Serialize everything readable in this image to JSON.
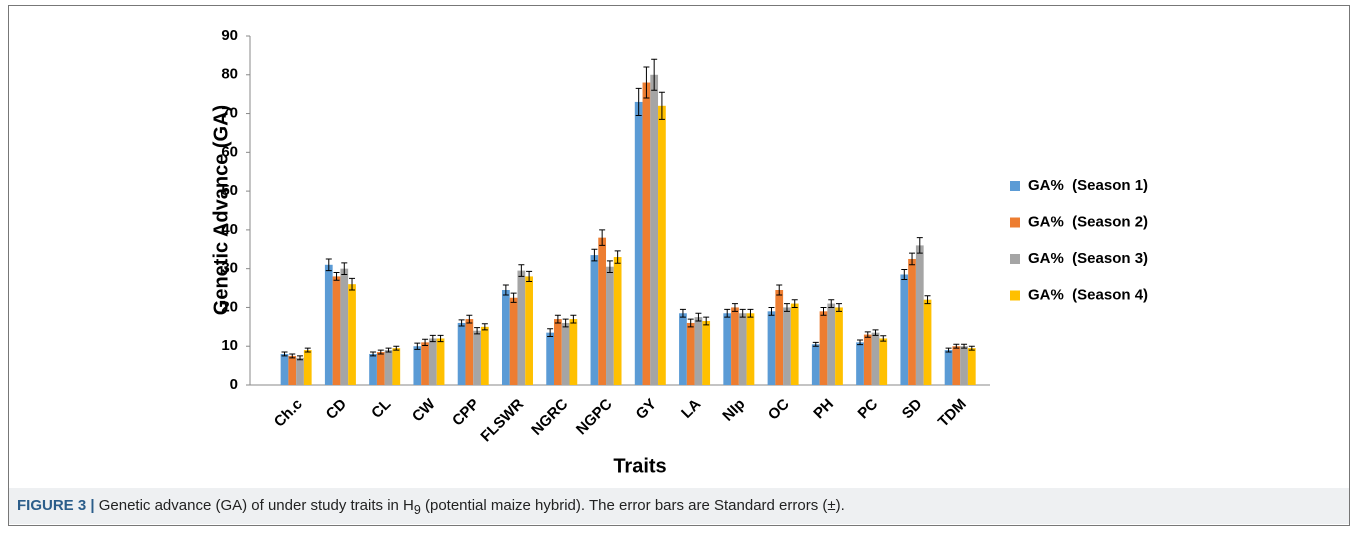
{
  "chart_data": {
    "type": "bar",
    "x_label": "Traits",
    "y_label": "Genetic Advance (GA)",
    "categories": [
      "Ch.c",
      "CD",
      "CL",
      "CW",
      "CPP",
      "FLSWR",
      "NGRC",
      "NGPC",
      "GY",
      "LA",
      "NIp",
      "OC",
      "PH",
      "PC",
      "SD",
      "TDM"
    ],
    "series": [
      {
        "name": "GA%  (Season 1)",
        "color": "#5b9bd5",
        "values": [
          8,
          31,
          8,
          10,
          16,
          24.5,
          13.5,
          33.5,
          73,
          18.5,
          18.5,
          19,
          10.5,
          11,
          28.5,
          9
        ],
        "errors": [
          0.5,
          1.5,
          0.5,
          0.8,
          0.8,
          1.3,
          1,
          1.5,
          3.5,
          1,
          1,
          1,
          0.5,
          0.6,
          1.3,
          0.5
        ]
      },
      {
        "name": "GA%  (Season 2)",
        "color": "#ed7d31",
        "values": [
          7.5,
          28,
          8.5,
          11,
          17,
          22.5,
          17,
          38,
          78,
          16,
          20,
          24.5,
          19,
          13,
          32.5,
          10
        ],
        "errors": [
          0.5,
          1,
          0.5,
          0.8,
          1,
          1.2,
          1,
          2,
          4,
          1,
          1,
          1.3,
          1,
          0.7,
          1.5,
          0.5
        ]
      },
      {
        "name": "GA%  (Season 3)",
        "color": "#a5a5a5",
        "values": [
          7,
          30,
          9,
          12,
          14,
          29.5,
          16,
          30.5,
          80,
          17.5,
          18.5,
          20,
          21,
          13.5,
          36,
          10
        ],
        "errors": [
          0.5,
          1.5,
          0.5,
          0.8,
          0.8,
          1.5,
          1,
          1.5,
          4,
          1,
          1,
          1,
          1,
          0.7,
          2,
          0.5
        ]
      },
      {
        "name": "GA%  (Season 4)",
        "color": "#ffc000",
        "values": [
          9,
          26,
          9.5,
          12,
          15,
          28,
          17,
          33,
          72,
          16.5,
          18.5,
          21,
          20,
          12,
          22,
          9.5
        ],
        "errors": [
          0.5,
          1.5,
          0.5,
          0.8,
          0.8,
          1.3,
          1,
          1.6,
          3.5,
          1,
          1,
          1,
          1,
          0.7,
          1,
          0.5
        ]
      }
    ],
    "ylim": [
      0,
      90
    ],
    "yticks": [
      0,
      10,
      20,
      30,
      40,
      50,
      60,
      70,
      80,
      90
    ],
    "grid": false,
    "legend": "right"
  },
  "caption": {
    "label": "FIGURE 3 |",
    "text_before": "Genetic advance (GA) of under study traits in H",
    "subscript": "9",
    "text_after": " (potential maize hybrid). The error bars are Standard errors (±)."
  }
}
